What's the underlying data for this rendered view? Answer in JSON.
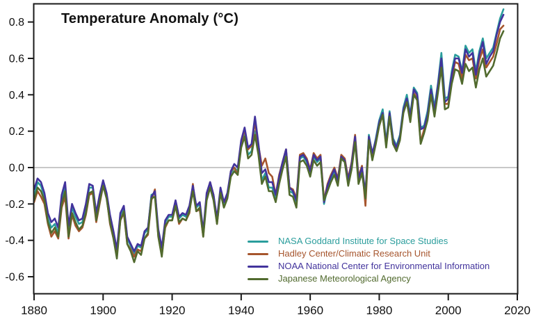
{
  "chart_data": {
    "type": "line",
    "title": "Temperature Anomaly (°C)",
    "xlabel": "",
    "ylabel": "",
    "xlim": [
      1880,
      2020
    ],
    "ylim": [
      -0.7,
      0.9
    ],
    "grid": "off",
    "zero_line": 0.0,
    "zero_line_color": "#c8c8c8",
    "axis_color": "#1a1a1a",
    "legend_position": "inside-bottom-right",
    "x_tick_labels": [
      "1880",
      "1900",
      "1920",
      "1940",
      "1960",
      "1980",
      "2000",
      "2020"
    ],
    "x_ticks": [
      1880,
      1900,
      1920,
      1940,
      1960,
      1980,
      2000,
      2020
    ],
    "y_tick_labels": [
      "0.8",
      "0.6",
      "0.4",
      "0.2",
      "0.0",
      "-0.2",
      "-0.4",
      "-0.6"
    ],
    "y_ticks": [
      0.8,
      0.6,
      0.4,
      0.2,
      0.0,
      -0.2,
      -0.4,
      -0.6
    ],
    "years": {
      "start": 1880,
      "end": 2016,
      "step": 1
    },
    "series": [
      {
        "name": "NASA Goddard Institute for Space Studies",
        "color": "#2A9D9C",
        "values": [
          -0.16,
          -0.08,
          -0.1,
          -0.16,
          -0.28,
          -0.33,
          -0.31,
          -0.36,
          -0.17,
          -0.1,
          -0.35,
          -0.22,
          -0.27,
          -0.31,
          -0.3,
          -0.22,
          -0.11,
          -0.11,
          -0.27,
          -0.17,
          -0.08,
          -0.15,
          -0.28,
          -0.37,
          -0.47,
          -0.26,
          -0.22,
          -0.39,
          -0.43,
          -0.48,
          -0.43,
          -0.44,
          -0.36,
          -0.34,
          -0.15,
          -0.14,
          -0.36,
          -0.46,
          -0.3,
          -0.27,
          -0.27,
          -0.19,
          -0.28,
          -0.26,
          -0.27,
          -0.22,
          -0.11,
          -0.22,
          -0.2,
          -0.36,
          -0.16,
          -0.09,
          -0.16,
          -0.29,
          -0.12,
          -0.2,
          -0.15,
          -0.03,
          0.0,
          -0.02,
          0.13,
          0.19,
          0.07,
          0.09,
          0.2,
          0.09,
          -0.07,
          -0.03,
          -0.11,
          -0.11,
          -0.17,
          -0.07,
          0.01,
          0.08,
          -0.13,
          -0.14,
          -0.19,
          0.05,
          0.06,
          0.03,
          -0.03,
          0.06,
          0.03,
          0.05,
          -0.2,
          -0.11,
          -0.06,
          -0.02,
          -0.08,
          0.05,
          0.03,
          -0.08,
          0.01,
          0.16,
          -0.07,
          -0.01,
          -0.15,
          0.18,
          0.07,
          0.16,
          0.26,
          0.32,
          0.14,
          0.31,
          0.16,
          0.12,
          0.18,
          0.33,
          0.4,
          0.29,
          0.44,
          0.41,
          0.22,
          0.23,
          0.31,
          0.45,
          0.33,
          0.46,
          0.63,
          0.38,
          0.39,
          0.53,
          0.62,
          0.61,
          0.53,
          0.67,
          0.63,
          0.65,
          0.53,
          0.64,
          0.71,
          0.6,
          0.63,
          0.66,
          0.74,
          0.82,
          0.87
        ]
      },
      {
        "name": "Hadley Center/Climatic Research Unit",
        "color": "#A6552D",
        "values": [
          -0.19,
          -0.13,
          -0.16,
          -0.2,
          -0.31,
          -0.38,
          -0.35,
          -0.39,
          -0.22,
          -0.16,
          -0.39,
          -0.26,
          -0.32,
          -0.35,
          -0.33,
          -0.26,
          -0.15,
          -0.14,
          -0.3,
          -0.2,
          -0.1,
          -0.16,
          -0.31,
          -0.39,
          -0.48,
          -0.29,
          -0.25,
          -0.42,
          -0.45,
          -0.49,
          -0.45,
          -0.46,
          -0.39,
          -0.37,
          -0.18,
          -0.12,
          -0.38,
          -0.48,
          -0.33,
          -0.29,
          -0.29,
          -0.21,
          -0.31,
          -0.28,
          -0.29,
          -0.25,
          -0.09,
          -0.24,
          -0.23,
          -0.38,
          -0.15,
          -0.08,
          -0.15,
          -0.31,
          -0.13,
          -0.19,
          -0.16,
          -0.02,
          0.0,
          -0.04,
          0.14,
          0.21,
          0.1,
          0.12,
          0.25,
          0.12,
          0.01,
          0.05,
          -0.03,
          -0.05,
          -0.15,
          -0.04,
          0.03,
          0.1,
          -0.11,
          -0.12,
          -0.17,
          0.07,
          0.08,
          0.05,
          -0.01,
          0.08,
          0.05,
          0.07,
          -0.18,
          -0.09,
          -0.04,
          0.0,
          -0.06,
          0.07,
          0.05,
          -0.06,
          0.03,
          0.18,
          -0.05,
          0.01,
          -0.21,
          0.16,
          0.05,
          0.14,
          0.23,
          0.29,
          0.12,
          0.28,
          0.13,
          0.1,
          0.16,
          0.31,
          0.37,
          0.26,
          0.41,
          0.38,
          0.14,
          0.21,
          0.28,
          0.42,
          0.3,
          0.44,
          0.58,
          0.35,
          0.35,
          0.49,
          0.58,
          0.57,
          0.49,
          0.62,
          0.59,
          0.6,
          0.49,
          0.59,
          0.65,
          0.55,
          0.58,
          0.61,
          0.68,
          0.76,
          0.78
        ]
      },
      {
        "name": "NOAA National Center for Environmental Information",
        "color": "#42339C",
        "values": [
          -0.12,
          -0.06,
          -0.08,
          -0.14,
          -0.25,
          -0.3,
          -0.28,
          -0.33,
          -0.15,
          -0.08,
          -0.32,
          -0.2,
          -0.25,
          -0.29,
          -0.28,
          -0.2,
          -0.09,
          -0.1,
          -0.25,
          -0.15,
          -0.07,
          -0.14,
          -0.26,
          -0.35,
          -0.45,
          -0.25,
          -0.21,
          -0.38,
          -0.42,
          -0.46,
          -0.42,
          -0.43,
          -0.35,
          -0.33,
          -0.16,
          -0.13,
          -0.34,
          -0.44,
          -0.29,
          -0.26,
          -0.26,
          -0.18,
          -0.27,
          -0.25,
          -0.26,
          -0.21,
          -0.1,
          -0.21,
          -0.19,
          -0.35,
          -0.14,
          -0.08,
          -0.15,
          -0.28,
          -0.11,
          -0.19,
          -0.14,
          -0.02,
          0.02,
          0.0,
          0.15,
          0.22,
          0.11,
          0.13,
          0.28,
          0.13,
          -0.03,
          -0.01,
          -0.08,
          -0.08,
          -0.15,
          -0.05,
          0.03,
          0.1,
          -0.11,
          -0.13,
          -0.18,
          0.06,
          0.07,
          0.04,
          -0.02,
          0.07,
          0.04,
          0.06,
          -0.19,
          -0.1,
          -0.05,
          -0.01,
          -0.07,
          0.06,
          0.04,
          -0.07,
          0.02,
          0.17,
          -0.06,
          0.0,
          -0.14,
          0.17,
          0.08,
          0.15,
          0.25,
          0.3,
          0.13,
          0.3,
          0.15,
          0.11,
          0.17,
          0.32,
          0.38,
          0.28,
          0.43,
          0.4,
          0.21,
          0.22,
          0.29,
          0.43,
          0.31,
          0.45,
          0.6,
          0.36,
          0.38,
          0.51,
          0.6,
          0.6,
          0.52,
          0.65,
          0.61,
          0.63,
          0.51,
          0.62,
          0.69,
          0.57,
          0.61,
          0.64,
          0.73,
          0.8,
          0.84
        ]
      },
      {
        "name": "Japanese Meteorological Agency",
        "color": "#516A2E",
        "values": [
          -0.18,
          -0.11,
          -0.13,
          -0.18,
          -0.3,
          -0.36,
          -0.33,
          -0.38,
          -0.2,
          -0.13,
          -0.38,
          -0.25,
          -0.3,
          -0.34,
          -0.32,
          -0.25,
          -0.14,
          -0.13,
          -0.29,
          -0.19,
          -0.1,
          -0.17,
          -0.3,
          -0.39,
          -0.5,
          -0.29,
          -0.24,
          -0.42,
          -0.46,
          -0.52,
          -0.46,
          -0.48,
          -0.39,
          -0.36,
          -0.17,
          -0.16,
          -0.38,
          -0.49,
          -0.32,
          -0.29,
          -0.29,
          -0.21,
          -0.3,
          -0.28,
          -0.29,
          -0.24,
          -0.13,
          -0.24,
          -0.22,
          -0.38,
          -0.18,
          -0.11,
          -0.18,
          -0.31,
          -0.14,
          -0.22,
          -0.17,
          -0.05,
          -0.02,
          -0.04,
          0.11,
          0.17,
          0.05,
          0.07,
          0.18,
          0.07,
          -0.09,
          -0.05,
          -0.13,
          -0.13,
          -0.19,
          -0.09,
          -0.01,
          0.06,
          -0.15,
          -0.16,
          -0.22,
          0.03,
          0.04,
          0.01,
          -0.05,
          0.04,
          0.01,
          0.03,
          -0.18,
          -0.13,
          -0.08,
          -0.04,
          -0.1,
          0.05,
          0.03,
          -0.1,
          -0.01,
          0.14,
          -0.09,
          -0.03,
          -0.17,
          0.15,
          0.04,
          0.13,
          0.23,
          0.29,
          0.11,
          0.28,
          0.13,
          0.09,
          0.15,
          0.3,
          0.36,
          0.25,
          0.4,
          0.37,
          0.13,
          0.19,
          0.26,
          0.4,
          0.28,
          0.41,
          0.55,
          0.32,
          0.33,
          0.46,
          0.54,
          0.53,
          0.46,
          0.57,
          0.53,
          0.55,
          0.44,
          0.54,
          0.6,
          0.5,
          0.53,
          0.56,
          0.63,
          0.71,
          0.75
        ]
      }
    ]
  }
}
